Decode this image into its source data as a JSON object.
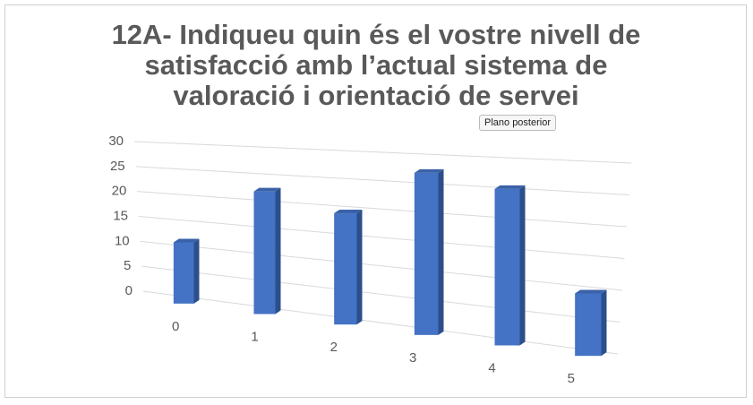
{
  "chart_data": {
    "type": "bar3d",
    "title": "12A- Indiqueu quin és el vostre nivell de satisfacció amb l’actual sistema de valoració i orientació de servei",
    "tooltip": "Plano posterior",
    "categories": [
      "0",
      "1",
      "2",
      "3",
      "4",
      "5"
    ],
    "values": [
      12,
      23,
      20,
      28,
      26,
      10
    ],
    "color": "#4472c4",
    "ylim": [
      0,
      30
    ],
    "yticks": [
      0,
      5,
      10,
      15,
      20,
      25,
      30
    ],
    "grid": true
  }
}
